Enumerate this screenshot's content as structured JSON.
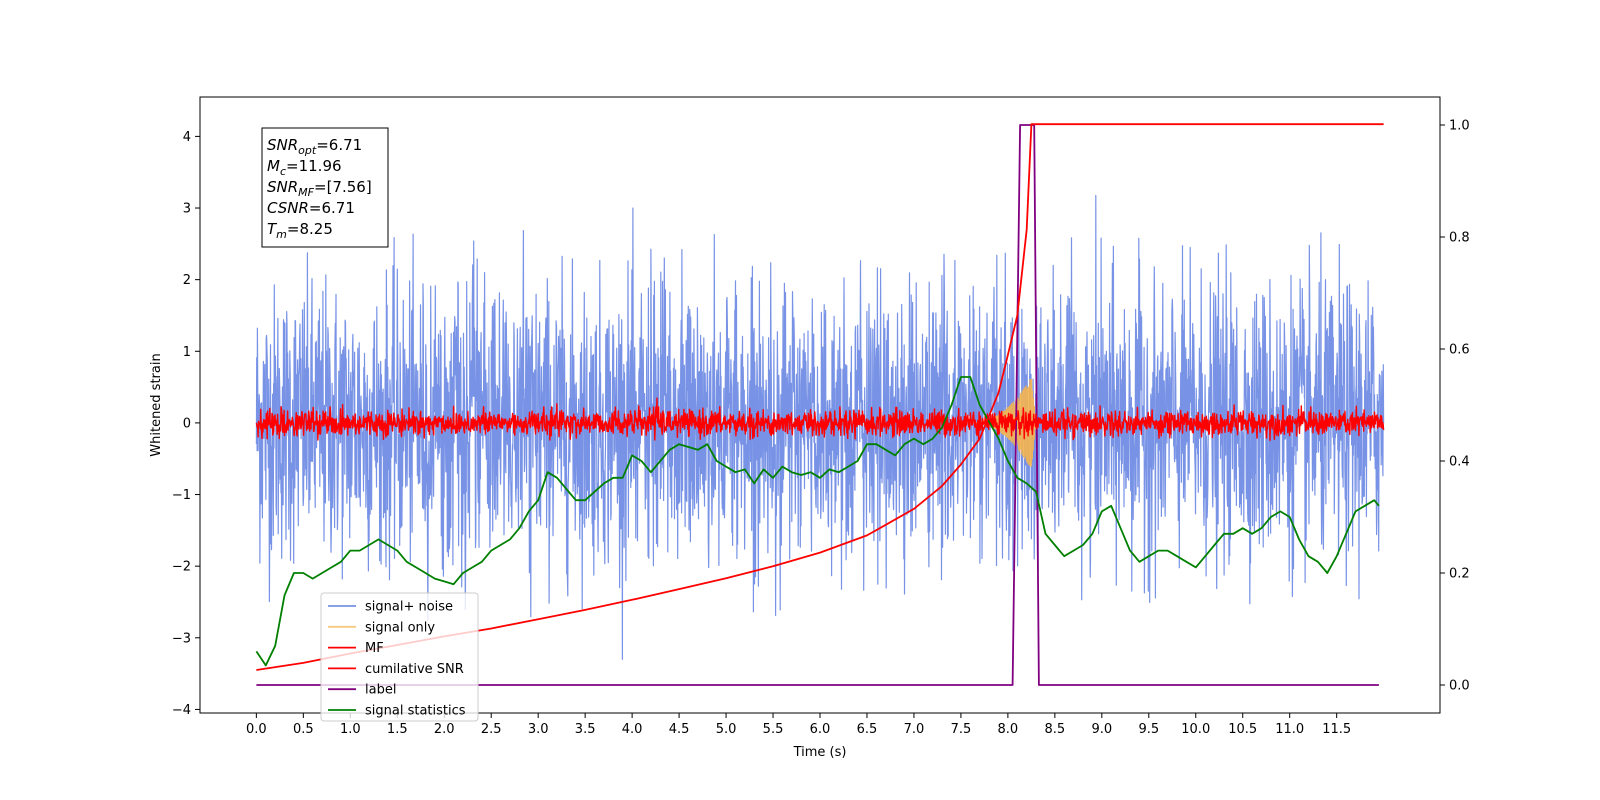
{
  "chart_data": {
    "type": "line",
    "title": "",
    "xlabel": "Time (s)",
    "ylabel": "Whitened strain",
    "xlim": [
      -0.6,
      12.6
    ],
    "ylim": [
      -4.05,
      4.55
    ],
    "y2lim": [
      -0.05,
      1.05
    ],
    "xticks": [
      0.0,
      0.5,
      1.0,
      1.5,
      2.0,
      2.5,
      3.0,
      3.5,
      4.0,
      4.5,
      5.0,
      5.5,
      6.0,
      6.5,
      7.0,
      7.5,
      8.0,
      8.5,
      9.0,
      9.5,
      10.0,
      10.5,
      11.0,
      11.5
    ],
    "xtick_labels": [
      "0.0",
      "0.5",
      "1.0",
      "1.5",
      "2.0",
      "2.5",
      "3.0",
      "3.5",
      "4.0",
      "4.5",
      "5.0",
      "5.5",
      "6.0",
      "6.5",
      "7.0",
      "7.5",
      "8.0",
      "8.5",
      "9.0",
      "9.5",
      "10.0",
      "10.5",
      "11.0",
      "11.5"
    ],
    "yticks": [
      -4,
      -3,
      -2,
      -1,
      0,
      1,
      2,
      3,
      4
    ],
    "ytick_labels": [
      "−4",
      "−3",
      "−2",
      "−1",
      "0",
      "1",
      "2",
      "3",
      "4"
    ],
    "y2ticks": [
      0.0,
      0.2,
      0.4,
      0.6,
      0.8,
      1.0
    ],
    "y2tick_labels": [
      "0.0",
      "0.2",
      "0.4",
      "0.6",
      "0.8",
      "1.0"
    ],
    "grid": false,
    "legend_position": "lower-left",
    "annotation_lines": [
      {
        "sym": "SNR",
        "sub": "opt",
        "val": "=6.71"
      },
      {
        "sym": "M",
        "sub": "c",
        "val": "=11.96"
      },
      {
        "sym": "SNR",
        "sub": "MF",
        "val": "=[7.56]"
      },
      {
        "sym": "CSNR",
        "sub": "",
        "val": "=6.71"
      },
      {
        "sym": "T",
        "sub": "m",
        "val": "=8.25"
      }
    ],
    "series": [
      {
        "name": "signal+ noise",
        "axis": "left",
        "color": "#7893e6",
        "kind": "noise-band",
        "t_range": [
          0.0,
          12.0
        ],
        "typical_abs_range": [
          1.9,
          2.7
        ],
        "peak_max": 3.45,
        "peak_min": -3.62
      },
      {
        "name": "signal only",
        "axis": "left",
        "color": "#f5b44e",
        "kind": "chirp",
        "t_range": [
          7.6,
          8.3
        ],
        "peak_amplitude": 0.65,
        "peak_time": 8.25
      },
      {
        "name": "MF",
        "axis": "left",
        "color": "#ff0000",
        "kind": "noise-band",
        "t_range": [
          0.0,
          12.0
        ],
        "typical_abs_range": [
          0.15,
          0.25
        ],
        "peak_max": 0.6,
        "peak_min": -0.25
      },
      {
        "name": "cumilative SNR",
        "axis": "left",
        "color": "#ff0000",
        "kind": "line",
        "x": [
          0.0,
          0.5,
          1.0,
          1.5,
          2.0,
          2.5,
          3.0,
          3.5,
          4.0,
          4.5,
          5.0,
          5.5,
          6.0,
          6.5,
          7.0,
          7.3,
          7.5,
          7.7,
          7.9,
          8.0,
          8.1,
          8.2,
          8.25,
          8.3,
          9.0,
          10.0,
          11.0,
          12.0
        ],
        "y": [
          -3.45,
          -3.35,
          -3.22,
          -3.1,
          -2.98,
          -2.87,
          -2.74,
          -2.61,
          -2.47,
          -2.32,
          -2.17,
          -2.0,
          -1.81,
          -1.57,
          -1.2,
          -0.88,
          -0.58,
          -0.22,
          0.42,
          0.95,
          1.5,
          2.7,
          4.17,
          4.17,
          4.17,
          4.17,
          4.17,
          4.17
        ]
      },
      {
        "name": "label",
        "axis": "right",
        "color": "#800080",
        "kind": "line",
        "x": [
          0.0,
          8.05,
          8.13,
          8.28,
          8.33,
          11.95
        ],
        "y": [
          0.0,
          0.0,
          1.0,
          1.0,
          0.0,
          0.0
        ]
      },
      {
        "name": "signal statistics",
        "axis": "right",
        "color": "#008000",
        "kind": "line",
        "x": [
          0.0,
          0.1,
          0.2,
          0.3,
          0.4,
          0.5,
          0.6,
          0.7,
          0.8,
          0.9,
          1.0,
          1.1,
          1.2,
          1.3,
          1.4,
          1.5,
          1.6,
          1.7,
          1.8,
          1.9,
          2.0,
          2.1,
          2.2,
          2.3,
          2.4,
          2.5,
          2.6,
          2.7,
          2.8,
          2.9,
          3.0,
          3.1,
          3.2,
          3.3,
          3.4,
          3.5,
          3.6,
          3.7,
          3.8,
          3.9,
          4.0,
          4.1,
          4.2,
          4.3,
          4.4,
          4.5,
          4.6,
          4.7,
          4.8,
          4.9,
          5.0,
          5.1,
          5.2,
          5.3,
          5.4,
          5.5,
          5.6,
          5.7,
          5.8,
          5.9,
          6.0,
          6.1,
          6.2,
          6.3,
          6.4,
          6.5,
          6.6,
          6.7,
          6.8,
          6.9,
          7.0,
          7.1,
          7.2,
          7.3,
          7.4,
          7.5,
          7.6,
          7.7,
          7.8,
          7.9,
          8.0,
          8.1,
          8.2,
          8.3,
          8.4,
          8.5,
          8.6,
          8.7,
          8.8,
          8.9,
          9.0,
          9.1,
          9.2,
          9.3,
          9.4,
          9.5,
          9.6,
          9.7,
          9.8,
          9.9,
          10.0,
          10.1,
          10.2,
          10.3,
          10.4,
          10.5,
          10.6,
          10.7,
          10.8,
          10.9,
          11.0,
          11.1,
          11.2,
          11.3,
          11.4,
          11.5,
          11.6,
          11.7,
          11.8,
          11.9,
          11.95
        ],
        "y": [
          0.06,
          0.035,
          0.07,
          0.16,
          0.2,
          0.2,
          0.19,
          0.2,
          0.21,
          0.22,
          0.24,
          0.24,
          0.25,
          0.26,
          0.25,
          0.24,
          0.22,
          0.21,
          0.2,
          0.19,
          0.185,
          0.18,
          0.2,
          0.21,
          0.22,
          0.24,
          0.25,
          0.26,
          0.28,
          0.31,
          0.33,
          0.38,
          0.37,
          0.35,
          0.33,
          0.33,
          0.345,
          0.36,
          0.37,
          0.37,
          0.41,
          0.4,
          0.38,
          0.4,
          0.42,
          0.43,
          0.425,
          0.42,
          0.43,
          0.4,
          0.39,
          0.38,
          0.385,
          0.36,
          0.385,
          0.37,
          0.39,
          0.38,
          0.375,
          0.38,
          0.37,
          0.385,
          0.38,
          0.39,
          0.4,
          0.43,
          0.43,
          0.42,
          0.41,
          0.43,
          0.44,
          0.43,
          0.44,
          0.46,
          0.5,
          0.55,
          0.55,
          0.5,
          0.47,
          0.44,
          0.4,
          0.37,
          0.36,
          0.345,
          0.27,
          0.25,
          0.23,
          0.24,
          0.25,
          0.27,
          0.31,
          0.32,
          0.28,
          0.24,
          0.22,
          0.23,
          0.24,
          0.24,
          0.23,
          0.22,
          0.21,
          0.23,
          0.25,
          0.27,
          0.27,
          0.28,
          0.27,
          0.28,
          0.3,
          0.31,
          0.3,
          0.26,
          0.23,
          0.22,
          0.2,
          0.23,
          0.27,
          0.31,
          0.32,
          0.33,
          0.32
        ]
      }
    ]
  }
}
